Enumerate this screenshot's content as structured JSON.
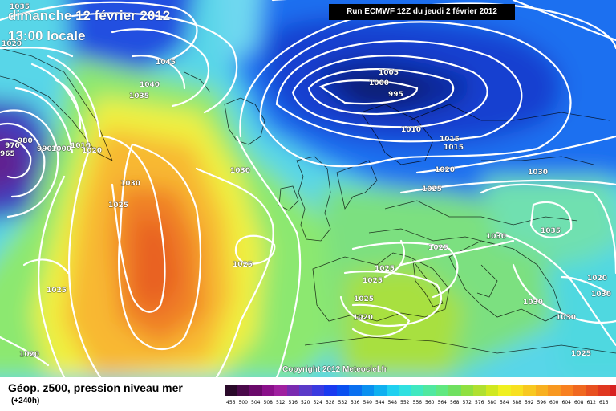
{
  "header": {
    "date_line": "dimanche 12 février 2012",
    "time_line": "13:00 locale",
    "run_label": "Run ECMWF 12Z du jeudi 2 février 2012"
  },
  "copyright": "Copyright 2012 Meteociel.fr",
  "footer": {
    "title": "Géop. z500, pression niveau mer",
    "subtitle": "(+240h)"
  },
  "isobar_labels": [
    {
      "text": "1035"
    },
    {
      "text": "1020"
    },
    {
      "text": "1045"
    },
    {
      "text": "1040"
    },
    {
      "text": "1035"
    },
    {
      "text": "1005"
    },
    {
      "text": "1000"
    },
    {
      "text": "995"
    },
    {
      "text": "1010"
    },
    {
      "text": "1015"
    },
    {
      "text": "1015"
    },
    {
      "text": "1020"
    },
    {
      "text": "1025"
    },
    {
      "text": "1030"
    },
    {
      "text": "1035"
    },
    {
      "text": "1030"
    },
    {
      "text": "1025"
    },
    {
      "text": "1025"
    },
    {
      "text": "1025"
    },
    {
      "text": "1025"
    },
    {
      "text": "1025"
    },
    {
      "text": "1020"
    },
    {
      "text": "1030"
    },
    {
      "text": "1030"
    },
    {
      "text": "1030"
    },
    {
      "text": "1025"
    },
    {
      "text": "1030"
    },
    {
      "text": "1025"
    },
    {
      "text": "1020"
    },
    {
      "text": "1030"
    },
    {
      "text": "1025"
    },
    {
      "text": "1020"
    },
    {
      "text": "965"
    },
    {
      "text": "970"
    },
    {
      "text": "980"
    },
    {
      "text": "990"
    },
    {
      "text": "1000"
    },
    {
      "text": "1010"
    },
    {
      "text": "1020"
    }
  ],
  "scale": {
    "colors": [
      "#2a0a2a",
      "#4a0a4a",
      "#6a0a6a",
      "#8a108a",
      "#a020a0",
      "#7a2ab0",
      "#5a3ac8",
      "#3a3ae0",
      "#1a3af0",
      "#0a50f0",
      "#0a70f0",
      "#0a90f0",
      "#10b0f0",
      "#20d0f0",
      "#30e0e0",
      "#40e8c0",
      "#50e8a0",
      "#60e880",
      "#70e060",
      "#90e040",
      "#b0e030",
      "#d0e820",
      "#f0f020",
      "#f8e020",
      "#f8c820",
      "#f8b020",
      "#f89820",
      "#f88020",
      "#f06820",
      "#e85020",
      "#e03820",
      "#d82020",
      "#c81818",
      "#b01010",
      "#901010",
      "#701010",
      "#501010",
      "#300808",
      "#000000",
      "#ffffff"
    ],
    "labels": [
      "456",
      "500",
      "504",
      "508",
      "512",
      "516",
      "520",
      "524",
      "528",
      "532",
      "536",
      "540",
      "544",
      "548",
      "552",
      "556",
      "560",
      "564",
      "568",
      "572",
      "576",
      "580",
      "584",
      "588",
      "592",
      "596",
      "600",
      "604",
      "608",
      "612",
      "616"
    ]
  }
}
